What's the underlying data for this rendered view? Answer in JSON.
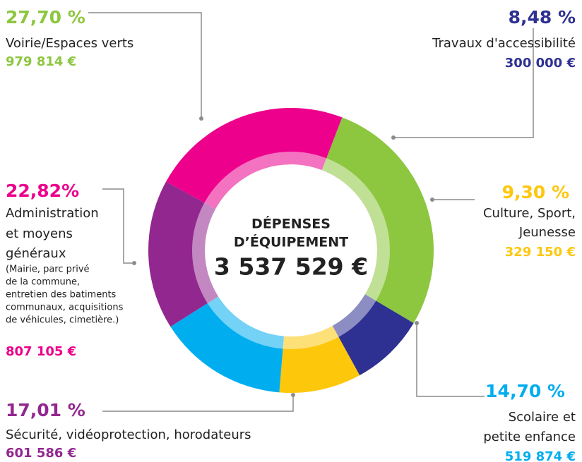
{
  "chart_data": {
    "type": "pie",
    "donut": true,
    "center_title": [
      "DÉPENSES",
      "D’ÉQUIPEMENT"
    ],
    "total_label": "3 537 529 €",
    "categories": [
      [
        "Voirie/Espaces verts"
      ],
      [
        "Travaux d'accessibilité"
      ],
      [
        "Culture, Sport,",
        "Jeunesse"
      ],
      [
        "Scolaire et",
        "petite enfance"
      ],
      [
        "Sécurité, vidéoprotection, horodateurs"
      ],
      [
        "Administration",
        "et moyens",
        "généraux"
      ]
    ],
    "values": [
      27.7,
      8.48,
      9.3,
      14.7,
      17.01,
      22.82
    ],
    "value_labels": [
      "27,70 %",
      "8,48 %",
      "9,30 %",
      "14,70 %",
      "17,01 %",
      "22,82%"
    ],
    "amount_labels": [
      "979 814 €",
      "300 000 €",
      "329 150 €",
      "519 874 €",
      "601 586 €",
      "807 105 €"
    ],
    "colors": [
      "#8dc63f",
      "#2e3192",
      "#fdc70c",
      "#00aeef",
      "#92278f",
      "#ec008c"
    ],
    "notes": [
      "(Mairie, parc privé",
      "de la commune,",
      "entretien des batiments",
      "communaux, acquisitions",
      "de véhicules, cimetière.)"
    ]
  }
}
